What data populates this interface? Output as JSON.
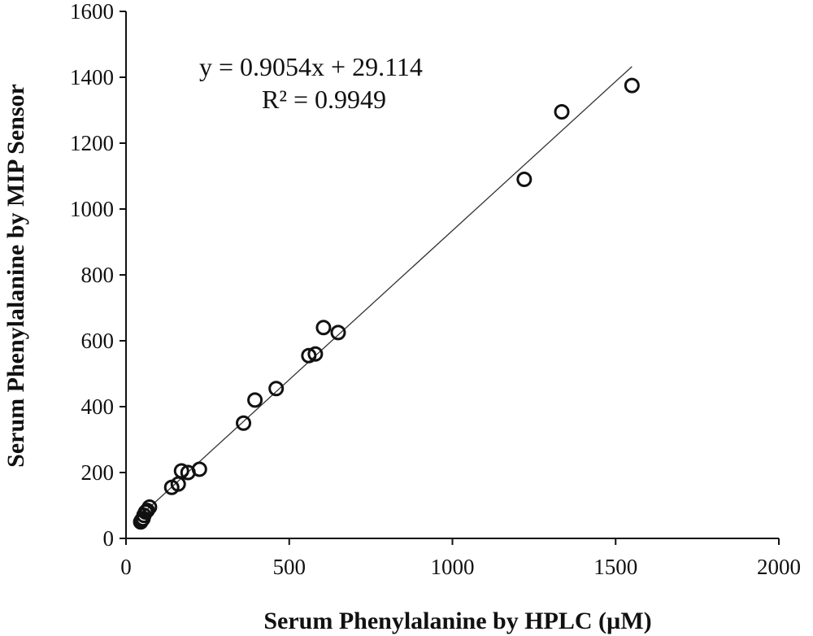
{
  "chart_data": {
    "type": "scatter",
    "title": "",
    "xlabel": "Serum Phenylalanine by HPLC (µM)",
    "ylabel": "Serum Phenylalanine by MIP Sensor",
    "xlim": [
      0,
      2000
    ],
    "ylim": [
      0,
      1600
    ],
    "x_ticks": [
      0,
      500,
      1000,
      1500,
      2000
    ],
    "y_ticks": [
      0,
      200,
      400,
      600,
      800,
      1000,
      1200,
      1400,
      1600
    ],
    "grid": false,
    "legend": "none",
    "marker": "open-circle",
    "colors": {
      "marker": "#111111",
      "trendline": "#333333",
      "axis": "#111111"
    },
    "series": [
      {
        "points": [
          [
            45,
            50
          ],
          [
            48,
            55
          ],
          [
            52,
            60
          ],
          [
            55,
            70
          ],
          [
            60,
            80
          ],
          [
            65,
            85
          ],
          [
            72,
            95
          ],
          [
            140,
            155
          ],
          [
            160,
            165
          ],
          [
            170,
            205
          ],
          [
            190,
            200
          ],
          [
            225,
            210
          ],
          [
            360,
            350
          ],
          [
            395,
            420
          ],
          [
            460,
            455
          ],
          [
            560,
            555
          ],
          [
            580,
            560
          ],
          [
            605,
            640
          ],
          [
            650,
            625
          ],
          [
            1220,
            1090
          ],
          [
            1335,
            1295
          ],
          [
            1550,
            1375
          ]
        ]
      }
    ],
    "trendline": {
      "slope": 0.9054,
      "intercept": 29.114,
      "x_range": [
        40,
        1550
      ],
      "equation": "y = 0.9054x  + 29.114",
      "r2": "R² = 0.9949"
    }
  }
}
